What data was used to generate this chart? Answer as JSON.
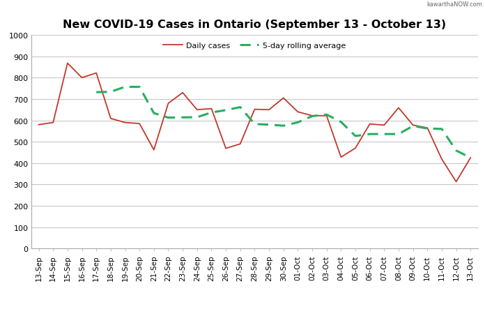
{
  "title": "New COVID-19 Cases in Ontario (September 13 - October 13)",
  "watermark": "kawarthaNOW.com",
  "labels": [
    "13-Sep",
    "14-Sep",
    "15-Sep",
    "16-Sep",
    "17-Sep",
    "18-Sep",
    "19-Sep",
    "20-Sep",
    "21-Sep",
    "22-Sep",
    "23-Sep",
    "24-Sep",
    "25-Sep",
    "26-Sep",
    "27-Sep",
    "28-Sep",
    "29-Sep",
    "30-Sep",
    "01-Oct",
    "02-Oct",
    "03-Oct",
    "04-Oct",
    "05-Oct",
    "06-Oct",
    "07-Oct",
    "08-Oct",
    "09-Oct",
    "10-Oct",
    "11-Oct",
    "12-Oct",
    "13-Oct"
  ],
  "daily_cases": [
    580,
    590,
    868,
    800,
    822,
    609,
    590,
    585,
    462,
    680,
    730,
    650,
    655,
    469,
    490,
    652,
    650,
    705,
    640,
    622,
    622,
    428,
    470,
    583,
    578,
    659,
    578,
    565,
    419,
    313,
    425
  ],
  "rolling_avg": [
    null,
    null,
    null,
    null,
    732,
    734,
    757,
    757,
    634,
    613,
    614,
    615,
    637,
    648,
    662,
    583,
    580,
    575,
    591,
    620,
    627,
    593,
    527,
    536,
    536,
    536,
    574,
    562,
    560,
    459,
    425
  ],
  "daily_color": "#c0392b",
  "rolling_color": "#27ae60",
  "legend_daily": "Daily cases",
  "legend_rolling": "5-day rolling average",
  "ylim": [
    0,
    1000
  ],
  "yticks": [
    0,
    100,
    200,
    300,
    400,
    500,
    600,
    700,
    800,
    900,
    1000
  ],
  "bg_color": "#ffffff",
  "grid_color": "#c8c8c8",
  "title_fontsize": 11.5,
  "tick_fontsize": 7.5,
  "ytick_fontsize": 8
}
